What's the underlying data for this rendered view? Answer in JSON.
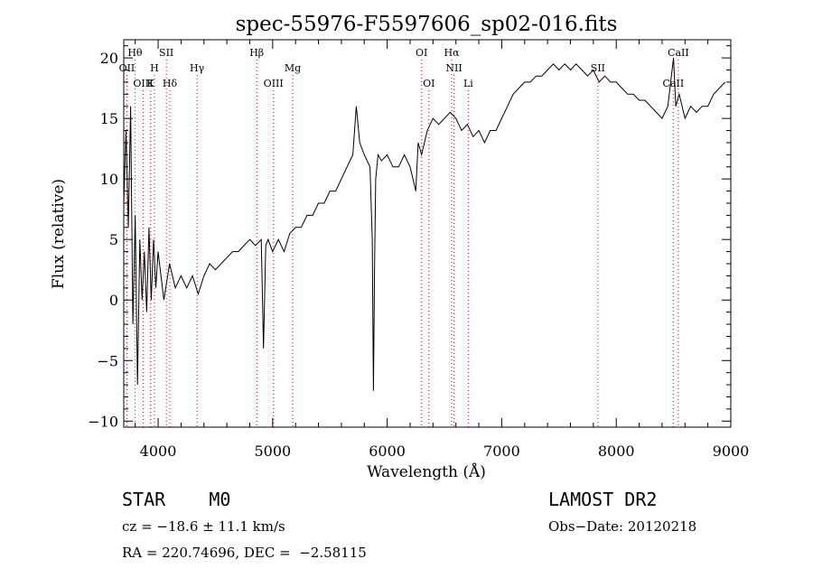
{
  "chart_data": {
    "type": "line",
    "title": "spec-55976-F5597606_sp02-016.fits",
    "xlabel": "Wavelength (Å)",
    "ylabel": "Flux (relative)",
    "xlim": [
      3700,
      9000
    ],
    "ylim": [
      -10.5,
      21.5
    ],
    "xticks": [
      4000,
      5000,
      6000,
      7000,
      8000,
      9000
    ],
    "yticks": [
      -10,
      -5,
      0,
      5,
      10,
      15,
      20
    ],
    "line_color": "#000000",
    "marker_color": "#ff0000",
    "series": [
      {
        "x": [
          3700,
          3720,
          3740,
          3760,
          3780,
          3800,
          3820,
          3840,
          3860,
          3880,
          3900,
          3920,
          3940,
          3960,
          3980,
          4000,
          4050,
          4100,
          4150,
          4200,
          4250,
          4300,
          4350,
          4400,
          4450,
          4500,
          4550,
          4600,
          4650,
          4700,
          4750,
          4800,
          4850,
          4900,
          4920,
          4940,
          4960,
          5000,
          5050,
          5100,
          5150,
          5200,
          5250,
          5300,
          5350,
          5400,
          5450,
          5500,
          5550,
          5600,
          5650,
          5700,
          5730,
          5760,
          5800,
          5850,
          5870,
          5880,
          5890,
          5900,
          5910,
          5920,
          5950,
          6000,
          6050,
          6100,
          6150,
          6200,
          6250,
          6270,
          6300,
          6350,
          6400,
          6450,
          6500,
          6550,
          6600,
          6650,
          6700,
          6750,
          6800,
          6850,
          6900,
          6950,
          7000,
          7050,
          7100,
          7150,
          7200,
          7250,
          7300,
          7350,
          7400,
          7450,
          7500,
          7550,
          7600,
          7650,
          7700,
          7750,
          7800,
          7850,
          7900,
          7950,
          8000,
          8050,
          8100,
          8150,
          8200,
          8250,
          8300,
          8350,
          8400,
          8450,
          8500,
          8520,
          8550,
          8600,
          8650,
          8700,
          8750,
          8800,
          8850,
          8900,
          8950
        ],
        "y": [
          8,
          14,
          6,
          16,
          -2,
          7,
          -7,
          5,
          0,
          4,
          -1,
          6,
          0,
          5,
          1,
          4,
          0,
          3,
          1,
          2,
          1,
          2,
          0.5,
          2,
          3,
          2.5,
          3,
          3.5,
          4,
          4,
          4.5,
          5,
          4.5,
          5,
          -4,
          4.5,
          5,
          4,
          5,
          4,
          5.5,
          6,
          6,
          7,
          7,
          8,
          8,
          9,
          9,
          10,
          11,
          12,
          16,
          13,
          12,
          11,
          5,
          -7.5,
          3,
          10,
          11,
          12,
          11.5,
          12,
          11,
          11,
          12,
          11,
          9,
          13,
          12,
          14,
          15,
          14.5,
          15,
          15.5,
          15,
          14,
          14.5,
          13.5,
          14,
          13,
          14,
          14,
          15,
          16,
          17,
          17.5,
          18,
          18,
          18.5,
          18.5,
          19,
          19.5,
          19,
          19.5,
          19,
          19.5,
          19,
          18.5,
          19,
          18,
          18.5,
          18,
          18,
          17.5,
          17,
          17,
          16.5,
          16.5,
          16,
          15.5,
          15,
          16,
          20,
          16,
          17,
          15,
          16,
          15.5,
          16,
          16,
          17,
          17.5,
          18
        ]
      }
    ],
    "line_markers": [
      {
        "name": "Hθ",
        "x": 3798,
        "row": 1
      },
      {
        "name": "OII",
        "x": 3727,
        "row": 2
      },
      {
        "name": "OIII",
        "x": 3869,
        "row": 3
      },
      {
        "name": "SII",
        "x": 4072,
        "row": 1
      },
      {
        "name": "H",
        "x": 3968,
        "row": 2
      },
      {
        "name": "K",
        "x": 3934,
        "row": 3
      },
      {
        "name": "Hδ",
        "x": 4102,
        "row": 3
      },
      {
        "name": "Hγ",
        "x": 4340,
        "row": 2
      },
      {
        "name": "Hβ",
        "x": 4861,
        "row": 1
      },
      {
        "name": "Mg",
        "x": 5175,
        "row": 2
      },
      {
        "name": "OIII",
        "x": 5007,
        "row": 3
      },
      {
        "name": "OI",
        "x": 6300,
        "row": 1
      },
      {
        "name": "Hα",
        "x": 6563,
        "row": 1
      },
      {
        "name": "NII",
        "x": 6583,
        "row": 2
      },
      {
        "name": "OI",
        "x": 6364,
        "row": 3
      },
      {
        "name": "Li",
        "x": 6708,
        "row": 3
      },
      {
        "name": "SII",
        "x": 7840,
        "row": 2
      },
      {
        "name": "CaII",
        "x": 8542,
        "row": 1
      },
      {
        "name": "CaII",
        "x": 8498,
        "row": 3
      }
    ]
  },
  "info": {
    "object_class": "STAR    M0",
    "cz": "cz = −18.6 ± 11.1 km/s",
    "coords": "RA = 220.74696, DEC =  −2.58115",
    "survey": "LAMOST DR2",
    "obs_date": "Obs−Date: 20120218"
  }
}
